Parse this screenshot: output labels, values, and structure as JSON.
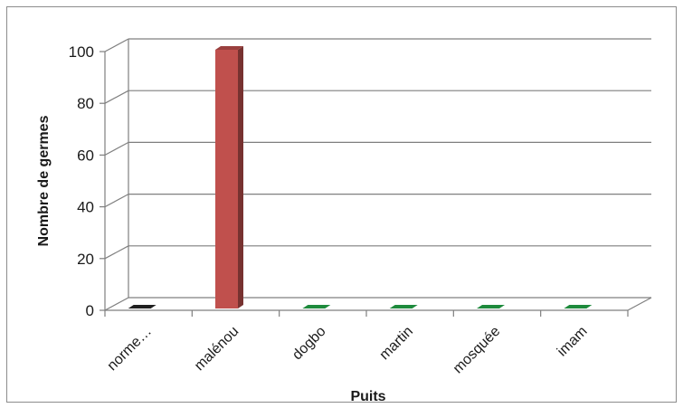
{
  "chart_data": {
    "type": "bar",
    "title": "",
    "xlabel": "Puits",
    "ylabel": "Nombre de germes",
    "categories": [
      "norme…",
      "malénou",
      "dogbo",
      "martin",
      "mosquée",
      "imam"
    ],
    "values": [
      0,
      100,
      0,
      0,
      0,
      0
    ],
    "bar_colors": [
      "#1f1f1f",
      "#c0504d",
      "#1e8a3c",
      "#1e8a3c",
      "#1e8a3c",
      "#1e8a3c"
    ],
    "ylim": [
      0,
      100
    ],
    "yticks": [
      0,
      20,
      40,
      60,
      80,
      100
    ],
    "grid": true,
    "legend": "none",
    "style": "3d-column"
  }
}
